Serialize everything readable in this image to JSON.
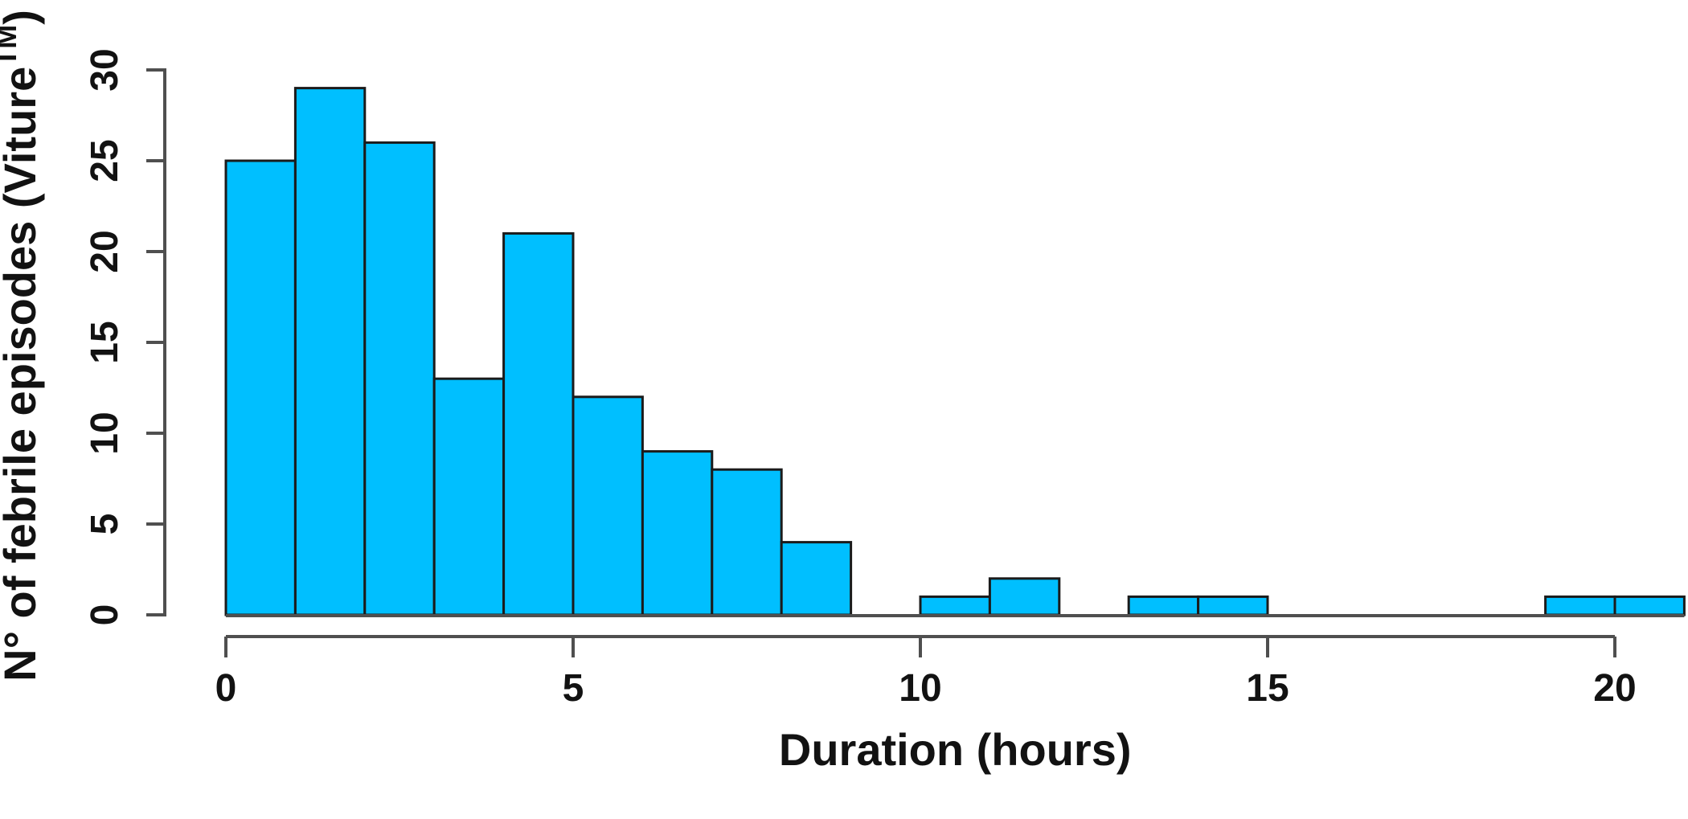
{
  "chart_data": {
    "type": "bar",
    "subtype": "histogram",
    "title": "",
    "xlabel": "Duration (hours)",
    "ylabel_main": "N° of febrile episodes (Viture",
    "ylabel_superscript": "TM",
    "ylabel_close": ")",
    "bin_start": 0,
    "bin_width": 1,
    "categories_bins": [
      "0-1",
      "1-2",
      "2-3",
      "3-4",
      "4-5",
      "5-6",
      "6-7",
      "7-8",
      "8-9",
      "9-10",
      "10-11",
      "11-12",
      "12-13",
      "13-14",
      "14-15",
      "15-16",
      "16-17",
      "17-18",
      "18-19",
      "19-20",
      "20-21"
    ],
    "values": [
      25,
      29,
      26,
      13,
      21,
      12,
      9,
      8,
      4,
      0,
      1,
      2,
      0,
      1,
      1,
      0,
      0,
      0,
      0,
      1,
      1
    ],
    "x_ticks": [
      0,
      5,
      10,
      15,
      20
    ],
    "y_ticks": [
      0,
      5,
      10,
      15,
      20,
      25,
      30
    ],
    "xlim": [
      0,
      21
    ],
    "ylim": [
      0,
      30
    ],
    "grid": false,
    "legend": null,
    "colors": {
      "bar_fill": "#00BFFF",
      "bar_stroke": "#1b1b1b",
      "axis": "#4f4f4f",
      "text": "#121212",
      "background": "#ffffff"
    }
  }
}
